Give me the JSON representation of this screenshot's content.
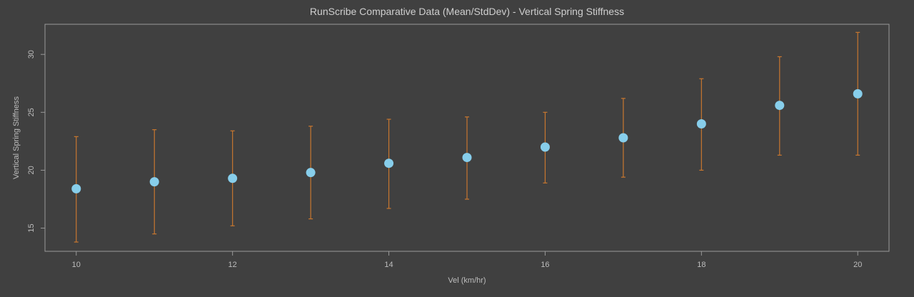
{
  "chart_data": {
    "type": "scatter",
    "title": "RunScribe Comparative Data (Mean/StdDev) - Vertical Spring Stiffness",
    "xlabel": "Vel (km/hr)",
    "ylabel": "Vertical Spring Stiffness",
    "xlim": [
      9.6,
      20.4
    ],
    "ylim": [
      13.0,
      32.6
    ],
    "xticks": [
      "10",
      "12",
      "14",
      "16",
      "18",
      "20"
    ],
    "yticks": [
      "15",
      "20",
      "25",
      "30"
    ],
    "grid": false,
    "series": [
      {
        "x": [
          10,
          11,
          12,
          13,
          14,
          15,
          16,
          17,
          18,
          19,
          20
        ],
        "mean": [
          18.4,
          19.0,
          19.3,
          19.8,
          20.6,
          21.1,
          22.0,
          22.8,
          24.0,
          25.6,
          26.6
        ],
        "lower": [
          13.8,
          14.5,
          15.2,
          15.8,
          16.7,
          17.5,
          18.9,
          19.4,
          20.0,
          21.3,
          21.3
        ],
        "upper": [
          22.9,
          23.5,
          23.4,
          23.8,
          24.4,
          24.6,
          25.0,
          26.2,
          27.9,
          29.8,
          31.9
        ]
      }
    ],
    "colors": {
      "background": "#404040",
      "marker": "#87ceeb",
      "errorbar": "#c8772f",
      "frame": "#9a9a9a"
    }
  }
}
